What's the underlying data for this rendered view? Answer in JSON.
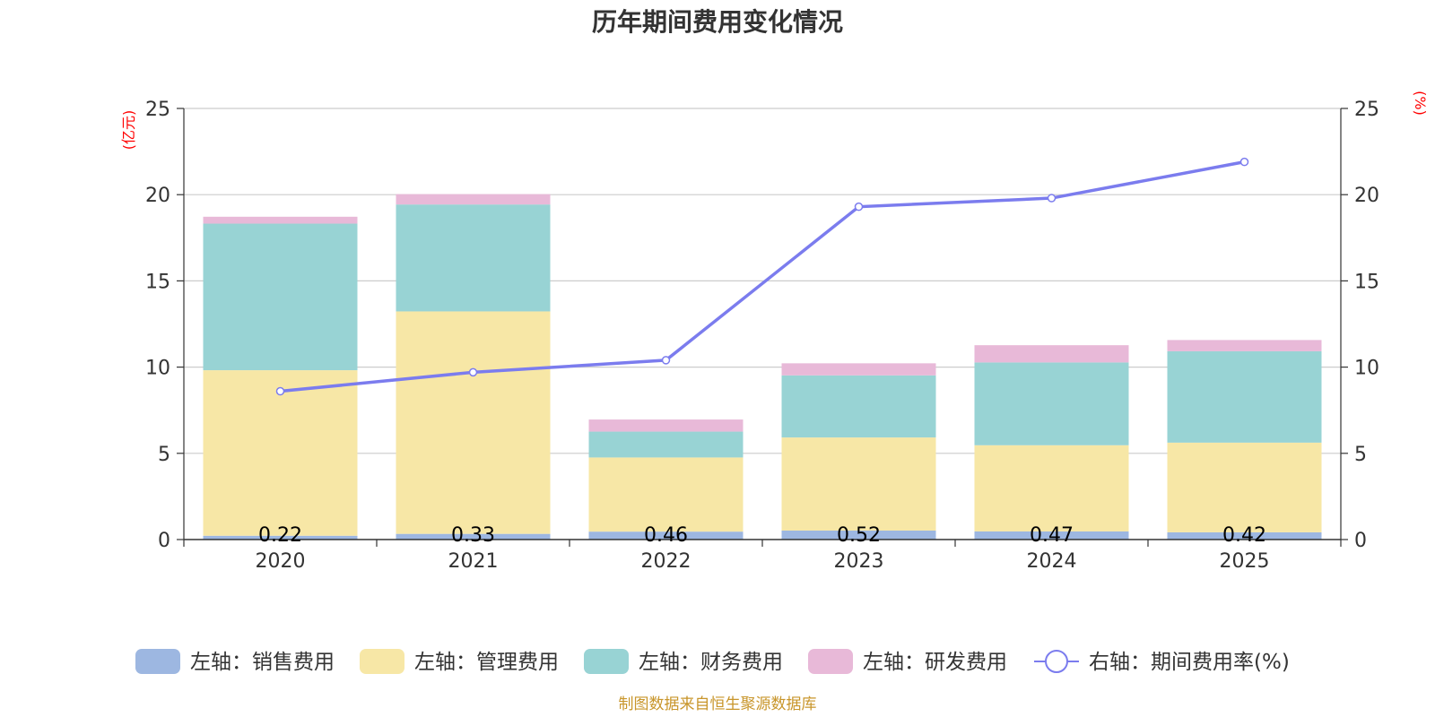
{
  "chart_data": {
    "type": "bar",
    "stacked": true,
    "title": "历年期间费用变化情况",
    "categories": [
      "2020",
      "2021",
      "2022",
      "2023",
      "2024",
      "2025"
    ],
    "left_axis": {
      "unit_label": "(亿元)",
      "ylim": [
        0,
        25
      ],
      "ticks": [
        "0",
        "5",
        "10",
        "15",
        "20",
        "25"
      ]
    },
    "right_axis": {
      "unit_label": "(%)",
      "ylim": [
        0,
        25
      ],
      "ticks": [
        "0",
        "5",
        "10",
        "15",
        "20",
        "25"
      ]
    },
    "series": [
      {
        "name": "左轴：销售费用",
        "axis": "left",
        "type": "bar",
        "color": "#9db7e1",
        "values": [
          0.22,
          0.33,
          0.46,
          0.52,
          0.47,
          0.42
        ]
      },
      {
        "name": "左轴：管理费用",
        "axis": "left",
        "type": "bar",
        "color": "#f7e7a6",
        "values": [
          9.6,
          12.9,
          4.3,
          5.4,
          5.0,
          5.2
        ]
      },
      {
        "name": "左轴：财务费用",
        "axis": "left",
        "type": "bar",
        "color": "#98d3d4",
        "values": [
          8.5,
          6.2,
          1.5,
          3.6,
          4.8,
          5.3
        ]
      },
      {
        "name": "左轴：研发费用",
        "axis": "left",
        "type": "bar",
        "color": "#e8b9d8",
        "values": [
          0.4,
          0.6,
          0.7,
          0.7,
          1.0,
          0.65
        ]
      },
      {
        "name": "右轴：期间费用率(%)",
        "axis": "right",
        "type": "line",
        "color": "#7b7cee",
        "values": [
          8.6,
          9.7,
          10.4,
          19.3,
          19.8,
          21.9
        ]
      }
    ],
    "data_labels": [
      "0.22",
      "0.33",
      "0.46",
      "0.52",
      "0.47",
      "0.42"
    ],
    "unit_label_color": "#ff0000",
    "grid": true,
    "legend_position": "bottom"
  },
  "source_text": "制图数据来自恒生聚源数据库",
  "source_color": "#c8952a"
}
